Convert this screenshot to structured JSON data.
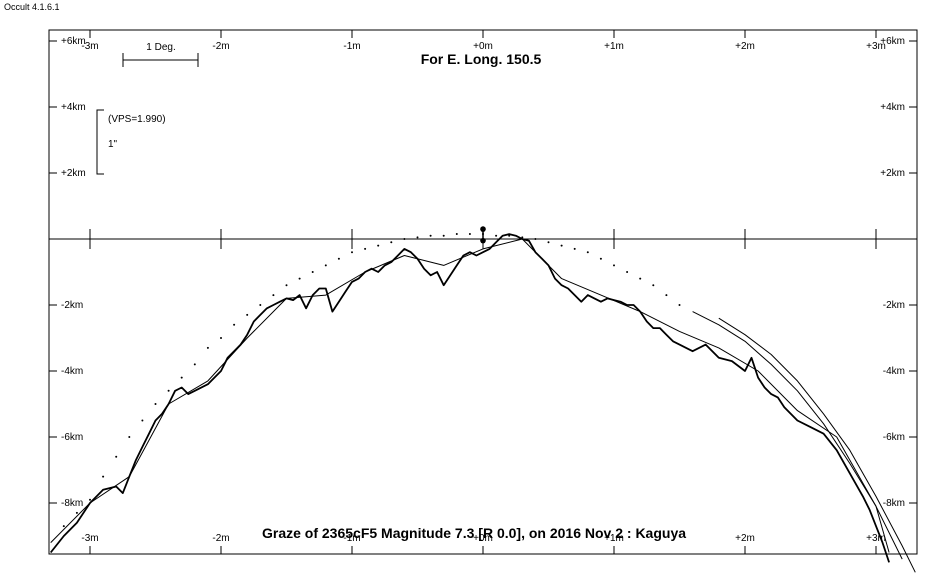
{
  "app": {
    "title": "Occult 4.1.6.1"
  },
  "chart_data": {
    "type": "line",
    "title": "For E. Long. 150.5",
    "caption": "Graze of  2365cF5  Magnitude 7.3 [R 0.0],  on 2016 Nov  2  :  Kaguya",
    "scale_deg_label": "1 Deg.",
    "scale_vps_label": "(VPS=1.990)",
    "scale_arcsec_label": "1\"",
    "x_ticks": [
      "-3m",
      "-2m",
      "-1m",
      "+0m",
      "+1m",
      "+2m",
      "+3m"
    ],
    "y_ticks_top": [
      "+6km",
      "+4km",
      "+2km"
    ],
    "y_ticks_bottom": [
      "-2km",
      "-4km",
      "-6km",
      "-8km"
    ],
    "xlim": [
      -3.3,
      3.3
    ],
    "ylim": [
      -9.5,
      6.0
    ],
    "series": [
      {
        "role": "limb-profile",
        "x": [
          -3.3,
          -3.2,
          -3.1,
          -3.0,
          -2.9,
          -2.8,
          -2.75,
          -2.7,
          -2.65,
          -2.6,
          -2.55,
          -2.5,
          -2.45,
          -2.4,
          -2.35,
          -2.3,
          -2.25,
          -2.2,
          -2.1,
          -2.0,
          -1.95,
          -1.9,
          -1.85,
          -1.8,
          -1.75,
          -1.7,
          -1.65,
          -1.6,
          -1.55,
          -1.5,
          -1.45,
          -1.4,
          -1.35,
          -1.3,
          -1.25,
          -1.2,
          -1.15,
          -1.1,
          -1.05,
          -1.0,
          -0.95,
          -0.9,
          -0.85,
          -0.8,
          -0.75,
          -0.7,
          -0.65,
          -0.6,
          -0.55,
          -0.5,
          -0.45,
          -0.4,
          -0.35,
          -0.3,
          -0.25,
          -0.2,
          -0.15,
          -0.1,
          -0.05,
          0.0,
          0.05,
          0.1,
          0.15,
          0.2,
          0.25,
          0.3,
          0.35,
          0.4,
          0.45,
          0.5,
          0.55,
          0.6,
          0.65,
          0.7,
          0.75,
          0.8,
          0.85,
          0.9,
          0.95,
          1.0,
          1.05,
          1.1,
          1.15,
          1.2,
          1.25,
          1.3,
          1.35,
          1.4,
          1.45,
          1.5,
          1.6,
          1.7,
          1.8,
          1.9,
          2.0,
          2.05,
          2.1,
          2.15,
          2.2,
          2.25,
          2.3,
          2.4,
          2.5,
          2.6,
          2.7,
          2.8,
          2.9,
          2.95,
          3.0,
          3.05,
          3.1
        ],
        "y": [
          -9.5,
          -9.0,
          -8.6,
          -8.0,
          -7.6,
          -7.5,
          -7.7,
          -7.2,
          -6.7,
          -6.3,
          -5.9,
          -5.5,
          -5.3,
          -5.0,
          -4.6,
          -4.5,
          -4.7,
          -4.6,
          -4.4,
          -4.0,
          -3.6,
          -3.4,
          -3.2,
          -2.9,
          -2.5,
          -2.3,
          -2.1,
          -2.0,
          -1.9,
          -1.8,
          -1.85,
          -1.7,
          -2.1,
          -1.7,
          -1.5,
          -1.5,
          -2.2,
          -1.9,
          -1.6,
          -1.3,
          -1.2,
          -1.0,
          -0.9,
          -1.0,
          -0.8,
          -0.7,
          -0.5,
          -0.3,
          -0.4,
          -0.6,
          -0.9,
          -1.1,
          -1.0,
          -1.4,
          -1.1,
          -0.8,
          -0.5,
          -0.4,
          -0.5,
          -0.4,
          -0.3,
          -0.1,
          0.1,
          0.15,
          0.1,
          0.0,
          -0.05,
          -0.4,
          -0.6,
          -0.8,
          -1.2,
          -1.4,
          -1.5,
          -1.7,
          -1.9,
          -1.7,
          -1.8,
          -1.9,
          -1.8,
          -1.85,
          -1.9,
          -2.0,
          -2.0,
          -2.2,
          -2.5,
          -2.7,
          -2.7,
          -2.9,
          -3.1,
          -3.2,
          -3.4,
          -3.2,
          -3.6,
          -3.7,
          -4.0,
          -3.6,
          -4.2,
          -4.5,
          -4.7,
          -4.8,
          -5.1,
          -5.5,
          -5.7,
          -5.9,
          -6.4,
          -7.1,
          -7.8,
          -8.2,
          -8.7,
          -9.2,
          -9.8
        ]
      },
      {
        "role": "mean-limb",
        "x": [
          -3.3,
          -3.0,
          -2.7,
          -2.4,
          -2.1,
          -1.8,
          -1.5,
          -1.2,
          -0.9,
          -0.6,
          -0.3,
          0.0,
          0.3,
          0.6,
          0.9,
          1.2,
          1.5,
          1.8,
          2.1,
          2.4,
          2.7,
          3.0,
          3.1
        ],
        "y": [
          -9.2,
          -8.0,
          -7.2,
          -5.0,
          -4.3,
          -3.0,
          -1.8,
          -1.7,
          -1.0,
          -0.5,
          -0.8,
          -0.3,
          0.0,
          -1.2,
          -1.7,
          -2.2,
          -2.8,
          -3.3,
          -4.0,
          -5.2,
          -6.0,
          -8.1,
          -9.5
        ]
      },
      {
        "role": "dotted-predicted-limb",
        "x": [
          -3.2,
          -3.1,
          -3.0,
          -2.9,
          -2.8,
          -2.7,
          -2.6,
          -2.5,
          -2.4,
          -2.3,
          -2.2,
          -2.1,
          -2.0,
          -1.9,
          -1.8,
          -1.7,
          -1.6,
          -1.5,
          -1.4,
          -1.3,
          -1.2,
          -1.1,
          -1.0,
          -0.9,
          -0.8,
          -0.7,
          -0.6,
          -0.5,
          -0.4,
          -0.3,
          -0.2,
          -0.1,
          0.0,
          0.1,
          0.2,
          0.3,
          0.4,
          0.5,
          0.6,
          0.7,
          0.8,
          0.9,
          1.0,
          1.1,
          1.2,
          1.3,
          1.4,
          1.5
        ],
        "y": [
          -8.7,
          -8.3,
          -7.9,
          -7.2,
          -6.6,
          -6.0,
          -5.5,
          -5.0,
          -4.6,
          -4.2,
          -3.8,
          -3.3,
          -3.0,
          -2.6,
          -2.3,
          -2.0,
          -1.7,
          -1.4,
          -1.2,
          -1.0,
          -0.8,
          -0.6,
          -0.4,
          -0.3,
          -0.2,
          -0.1,
          0.0,
          0.05,
          0.1,
          0.1,
          0.15,
          0.15,
          0.15,
          0.1,
          0.1,
          0.05,
          0.0,
          -0.1,
          -0.2,
          -0.3,
          -0.4,
          -0.6,
          -0.8,
          -1.0,
          -1.2,
          -1.4,
          -1.7,
          -2.0
        ]
      },
      {
        "role": "southern-limit-1",
        "x": [
          1.6,
          1.8,
          2.0,
          2.2,
          2.4,
          2.6,
          2.8,
          3.0,
          3.2
        ],
        "y": [
          -2.2,
          -2.6,
          -3.1,
          -3.8,
          -4.6,
          -5.6,
          -6.8,
          -8.1,
          -9.7
        ]
      },
      {
        "role": "southern-limit-2",
        "x": [
          1.8,
          2.0,
          2.2,
          2.4,
          2.6,
          2.8,
          3.0,
          3.2,
          3.3
        ],
        "y": [
          -2.4,
          -2.9,
          -3.5,
          -4.3,
          -5.3,
          -6.4,
          -7.8,
          -9.3,
          -10.1
        ]
      }
    ],
    "star_marker": {
      "x": 0.0,
      "y_top": 0.3,
      "y_bottom": -0.05
    }
  }
}
